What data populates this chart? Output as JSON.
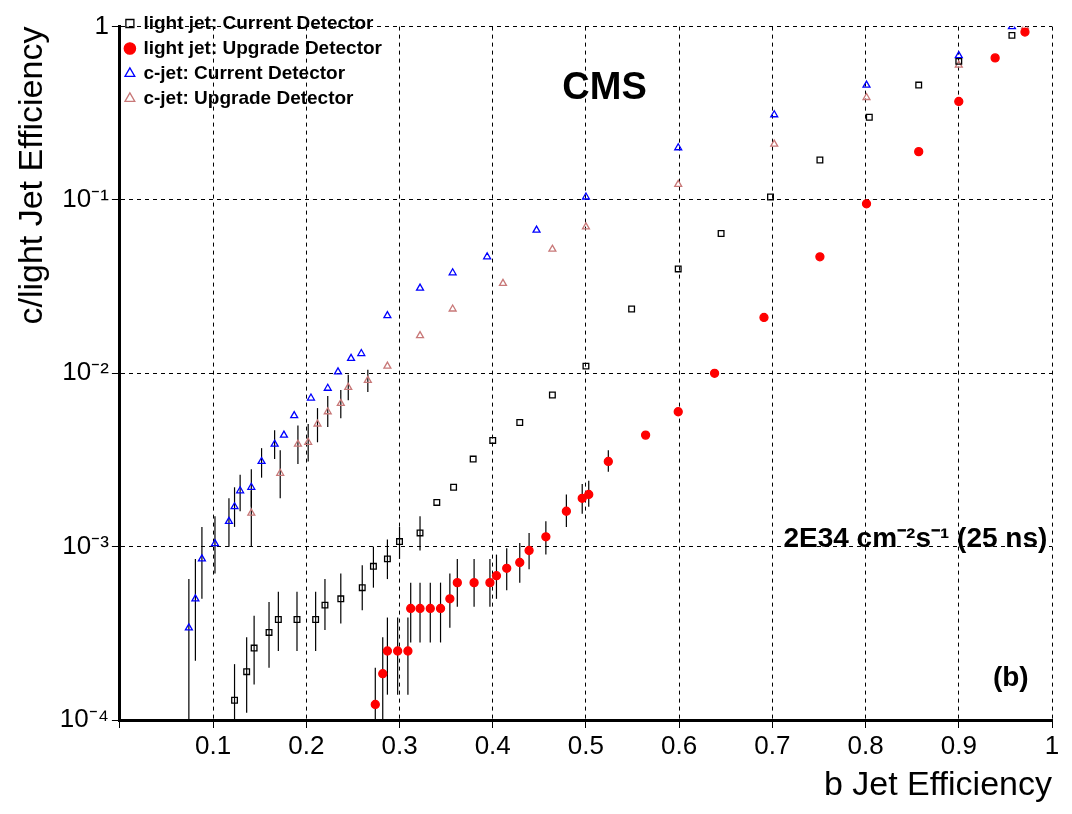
{
  "chart_data": {
    "type": "scatter",
    "xlabel": "b Jet Efficiency",
    "ylabel": "c/light Jet Efficiency",
    "xlim": [
      0,
      1
    ],
    "xticks": [
      {
        "value": 0,
        "label": null
      },
      0.1,
      0.2,
      0.3,
      0.4,
      0.5,
      0.6,
      0.7,
      0.8,
      0.9,
      1
    ],
    "ylim": [
      0.0001,
      1
    ],
    "yticks": [
      {
        "value": 0.0001,
        "label": "10⁻⁴"
      },
      {
        "value": 0.001,
        "label": "10⁻³"
      },
      {
        "value": 0.01,
        "label": "10⁻²"
      },
      {
        "value": 0.1,
        "label": "10⁻¹"
      },
      1
    ],
    "log": "y",
    "grid": true,
    "legend": "top left",
    "annotations": [
      "CMS",
      "2E34 cm⁻²s⁻¹ (25 ns)",
      "(b)"
    ],
    "series": [
      {
        "name": "light jet: Current Detector",
        "color": "#000000",
        "marker": "square",
        "x": [
          0.123,
          0.136,
          0.144,
          0.16,
          0.17,
          0.19,
          0.21,
          0.22,
          0.237,
          0.26,
          0.272,
          0.287,
          0.3,
          0.322,
          0.34,
          0.358,
          0.379,
          0.4,
          0.429,
          0.464,
          0.5,
          0.549,
          0.599,
          0.645,
          0.698,
          0.751,
          0.804,
          0.857,
          0.9,
          0.957
        ],
        "values": [
          0.00013,
          0.00019,
          0.00026,
          0.00032,
          0.00038,
          0.00038,
          0.00038,
          0.00046,
          0.0005,
          0.00058,
          0.00077,
          0.00085,
          0.00107,
          0.0012,
          0.0018,
          0.0022,
          0.0032,
          0.0041,
          0.0052,
          0.0075,
          0.011,
          0.0235,
          0.04,
          0.064,
          0.104,
          0.17,
          0.3,
          0.46,
          0.63,
          0.89
        ],
        "errors": [
          [
            0.0001,
            0.00021
          ],
          [
            0.00011,
            0.0003
          ],
          [
            0.00016,
            0.0004
          ],
          [
            0.0002,
            0.00048
          ],
          [
            0.00025,
            0.00055
          ],
          [
            0.00025,
            0.00055
          ],
          [
            0.00025,
            0.00055
          ],
          [
            0.00033,
            0.00065
          ],
          [
            0.00036,
            0.0007
          ],
          [
            0.00043,
            0.00078
          ],
          [
            0.00058,
            0.001
          ],
          [
            0.00065,
            0.0011
          ],
          [
            0.00085,
            0.0013
          ],
          [
            0.00095,
            0.0015
          ],
          null,
          null,
          null,
          null,
          null,
          null,
          null,
          null,
          null,
          null,
          null,
          null,
          null,
          null,
          null,
          null
        ]
      },
      {
        "name": "light jet: Upgrade Detector",
        "color": "#ff0000",
        "marker": "circle",
        "x": [
          0.274,
          0.282,
          0.287,
          0.298,
          0.309,
          0.312,
          0.322,
          0.333,
          0.344,
          0.354,
          0.362,
          0.38,
          0.397,
          0.404,
          0.415,
          0.429,
          0.439,
          0.457,
          0.479,
          0.496,
          0.503,
          0.524,
          0.564,
          0.599,
          0.638,
          0.691,
          0.751,
          0.801,
          0.857,
          0.9,
          0.939,
          0.971
        ],
        "values": [
          0.000123,
          0.000185,
          0.00025,
          0.00025,
          0.00025,
          0.00044,
          0.00044,
          0.00044,
          0.00044,
          0.0005,
          0.00062,
          0.00062,
          0.00062,
          0.00068,
          0.00075,
          0.00081,
          0.00095,
          0.00114,
          0.0016,
          0.0019,
          0.002,
          0.0031,
          0.0044,
          0.006,
          0.01,
          0.021,
          0.047,
          0.095,
          0.19,
          0.37,
          0.66,
          0.93
        ],
        "errors": [
          [
            0.0001,
            0.0002
          ],
          [
            0.0001,
            0.0003
          ],
          [
            0.00014,
            0.00039
          ],
          [
            0.00014,
            0.00039
          ],
          [
            0.00014,
            0.00039
          ],
          [
            0.00028,
            0.00062
          ],
          [
            0.00028,
            0.00062
          ],
          [
            0.00028,
            0.00062
          ],
          [
            0.00028,
            0.00062
          ],
          [
            0.00034,
            0.0007
          ],
          [
            0.00045,
            0.00085
          ],
          [
            0.00045,
            0.00085
          ],
          [
            0.00045,
            0.00085
          ],
          [
            0.0005,
            0.0009
          ],
          [
            0.00056,
            0.00098
          ],
          [
            0.00062,
            0.00105
          ],
          [
            0.00074,
            0.0012
          ],
          [
            0.0009,
            0.0014
          ],
          [
            0.0013,
            0.002
          ],
          [
            0.00155,
            0.0023
          ],
          [
            0.0017,
            0.0024
          ],
          [
            0.0027,
            0.0036
          ],
          null,
          null,
          null,
          null,
          null,
          null,
          null,
          null,
          null,
          null
        ]
      },
      {
        "name": "c-jet: Current Detector",
        "color": "#0000ff",
        "marker": "triangle",
        "x": [
          0.074,
          0.081,
          0.088,
          0.102,
          0.117,
          0.123,
          0.129,
          0.141,
          0.152,
          0.166,
          0.176,
          0.187,
          0.205,
          0.223,
          0.234,
          0.248,
          0.259,
          0.287,
          0.322,
          0.357,
          0.394,
          0.447,
          0.5,
          0.599,
          0.702,
          0.801,
          0.9,
          0.957
        ],
        "values": [
          0.00034,
          0.0005,
          0.00085,
          0.00104,
          0.0014,
          0.0017,
          0.0021,
          0.0022,
          0.0031,
          0.0039,
          0.0044,
          0.0057,
          0.0072,
          0.0082,
          0.0102,
          0.0122,
          0.013,
          0.0215,
          0.031,
          0.038,
          0.047,
          0.067,
          0.104,
          0.2,
          0.31,
          0.46,
          0.68,
          1
        ],
        "errors": [
          [
            0.0001,
            0.00065
          ],
          [
            0.00022,
            0.00085
          ],
          [
            0.0005,
            0.0013
          ],
          [
            0.0007,
            0.0015
          ],
          [
            0.001,
            0.0019
          ],
          [
            0.0013,
            0.0022
          ],
          [
            0.0016,
            0.0026
          ],
          [
            0.0017,
            0.0028
          ],
          [
            0.0025,
            0.0037
          ],
          [
            0.0032,
            0.0047
          ],
          null,
          null,
          null,
          null,
          null,
          null,
          null,
          null,
          null,
          null,
          null,
          null,
          null,
          null,
          null,
          null,
          null,
          null
        ]
      },
      {
        "name": "c-jet: Upgrade Detector",
        "color": "#c87878",
        "marker": "triangle",
        "x": [
          0.141,
          0.172,
          0.191,
          0.202,
          0.212,
          0.223,
          0.237,
          0.245,
          0.266,
          0.287,
          0.322,
          0.357,
          0.411,
          0.464,
          0.5,
          0.599,
          0.702,
          0.801,
          0.9,
          0.971
        ],
        "values": [
          0.00156,
          0.00265,
          0.0039,
          0.004,
          0.0051,
          0.006,
          0.0067,
          0.0083,
          0.0091,
          0.011,
          0.0165,
          0.0235,
          0.033,
          0.052,
          0.07,
          0.123,
          0.21,
          0.39,
          0.6,
          1
        ],
        "errors": [
          [
            0.001,
            0.0021
          ],
          [
            0.0019,
            0.0036
          ],
          [
            0.003,
            0.005
          ],
          [
            0.0031,
            0.0051
          ],
          [
            0.004,
            0.0063
          ],
          [
            0.0049,
            0.0074
          ],
          [
            0.0055,
            0.008
          ],
          [
            0.007,
            0.0098
          ],
          [
            0.0078,
            0.0105
          ],
          null,
          null,
          null,
          null,
          null,
          null,
          null,
          null,
          null,
          null,
          null
        ]
      }
    ]
  }
}
